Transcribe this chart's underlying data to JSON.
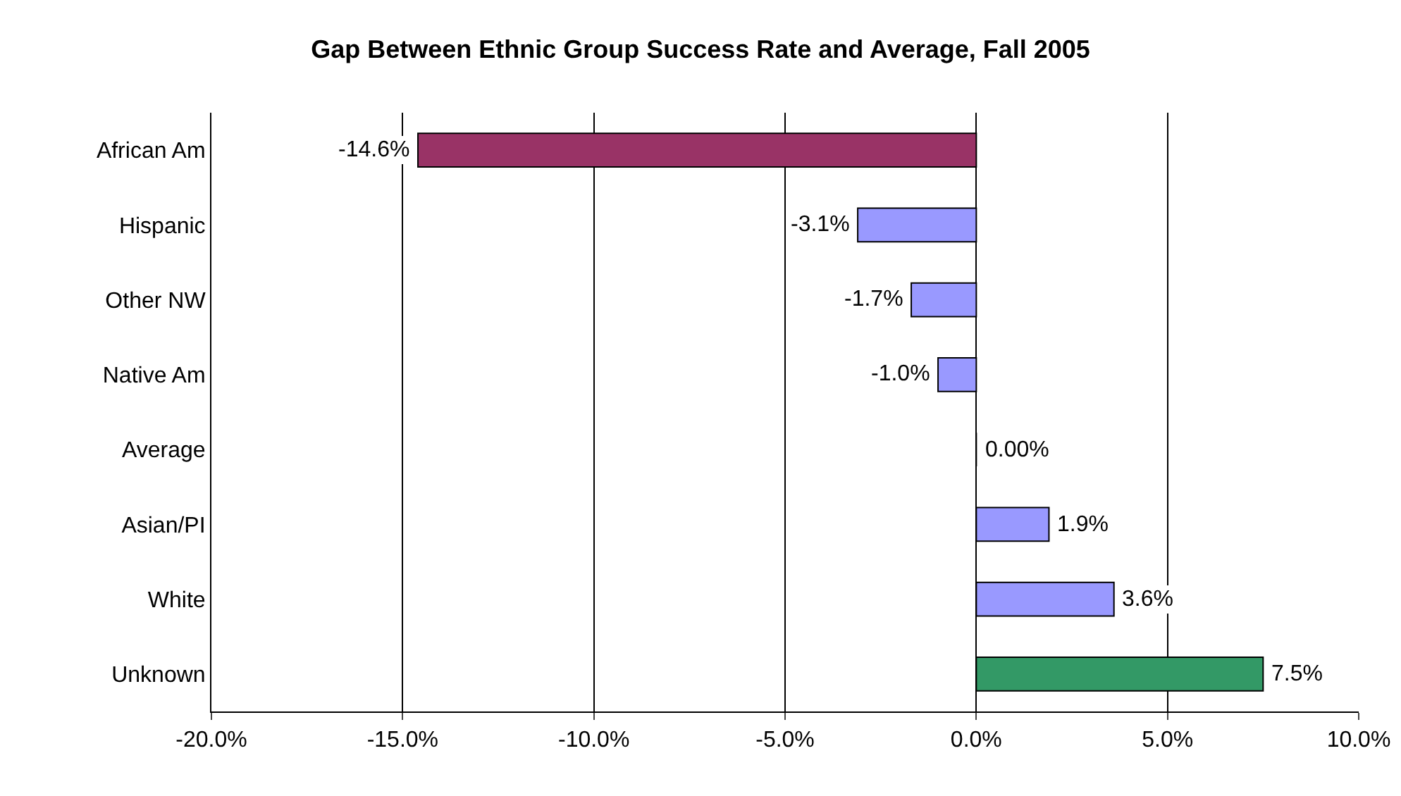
{
  "chart_data": {
    "type": "bar",
    "orientation": "horizontal",
    "title": "Gap Between Ethnic Group Success Rate and Average, Fall 2005",
    "categories": [
      "African Am",
      "Hispanic",
      "Other NW",
      "Native Am",
      "Average",
      "Asian/PI",
      "White",
      "Unknown"
    ],
    "values": [
      -14.6,
      -3.1,
      -1.7,
      -1.0,
      0.0,
      1.9,
      3.6,
      7.5
    ],
    "colors": [
      "#993366",
      "#9999ff",
      "#9999ff",
      "#9999ff",
      "#000000",
      "#9999ff",
      "#9999ff",
      "#339966"
    ],
    "value_labels": [
      "-14.6%",
      "-3.1%",
      "-1.7%",
      "-1.0%",
      "0.00%",
      "1.9%",
      "3.6%",
      "7.5%"
    ],
    "xlim": [
      -20,
      10
    ],
    "xticks": [
      {
        "value": -20,
        "label": "-20.0%"
      },
      {
        "value": -15,
        "label": "-15.0%"
      },
      {
        "value": -10,
        "label": "-10.0%"
      },
      {
        "value": -5,
        "label": "-5.0%"
      },
      {
        "value": 0,
        "label": "0.0%"
      },
      {
        "value": 5,
        "label": "5.0%"
      },
      {
        "value": 10,
        "label": "10.0%"
      }
    ],
    "grid": "x",
    "legend": false
  }
}
